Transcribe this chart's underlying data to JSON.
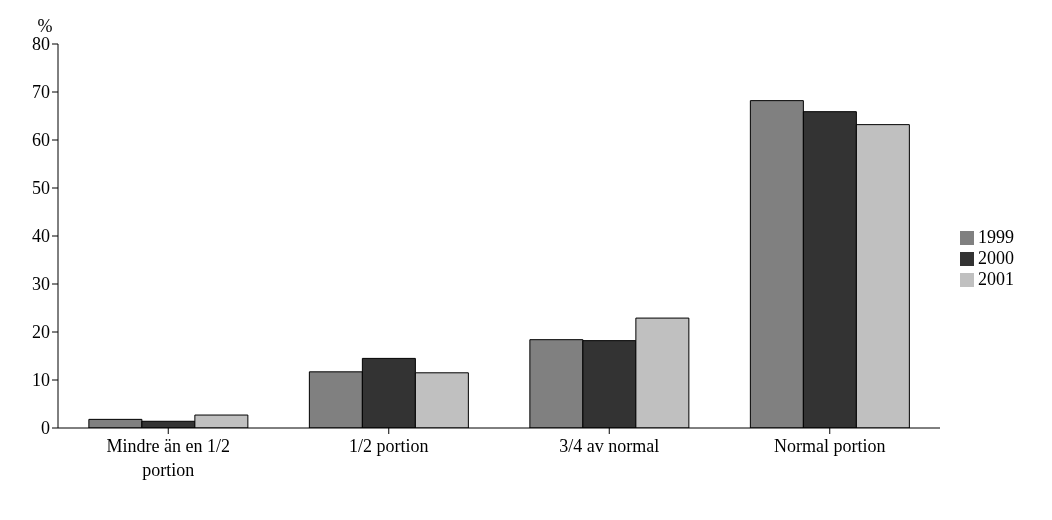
{
  "chart_data": {
    "type": "bar",
    "ylabel": "%",
    "categories": [
      "Mindre än en 1/2 portion",
      "1/2 portion",
      "3/4 av normal",
      "Normal portion"
    ],
    "series": [
      {
        "name": "1999",
        "color": "#808080",
        "values": [
          1.8,
          11.7,
          18.4,
          68.2
        ]
      },
      {
        "name": "2000",
        "color": "#333333",
        "values": [
          1.4,
          14.5,
          18.2,
          65.9
        ]
      },
      {
        "name": "2001",
        "color": "#c0c0c0",
        "values": [
          2.7,
          11.5,
          22.9,
          63.2
        ]
      }
    ],
    "ylim": [
      0,
      80
    ],
    "yticks": [
      0,
      10,
      20,
      30,
      40,
      50,
      60,
      70,
      80
    ],
    "legend": "right"
  }
}
